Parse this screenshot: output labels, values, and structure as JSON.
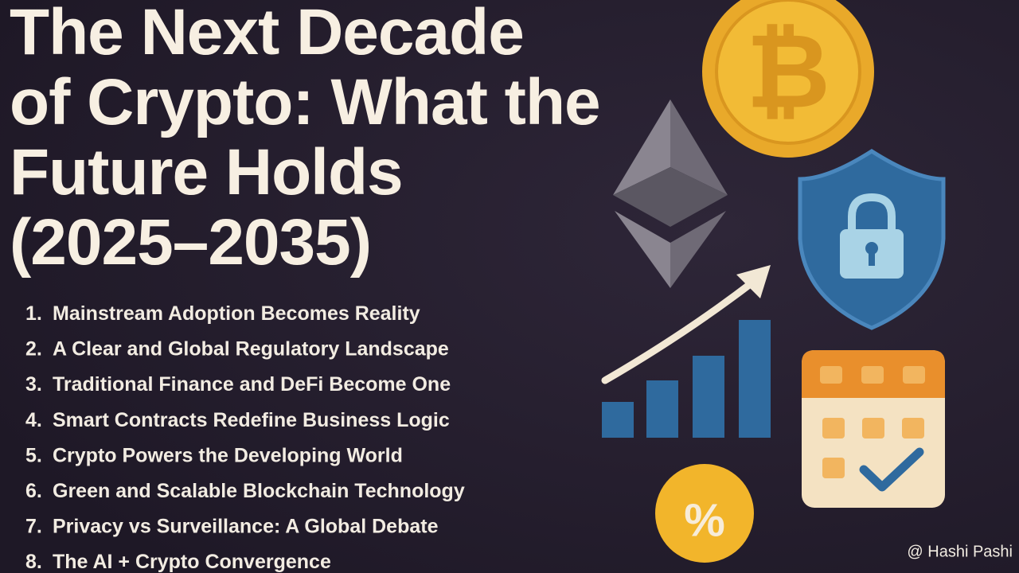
{
  "header": {
    "title_lines": [
      "The Next Decade",
      "of Crypto: What the",
      "Future Holds",
      "(2025–2035)"
    ]
  },
  "list": [
    {
      "number": "1.",
      "text": "Mainstream Adoption Becomes Reality"
    },
    {
      "number": "2.",
      "text": "A Clear and Global Regulatory Landscape"
    },
    {
      "number": "3.",
      "text": "Traditional Finance and DeFi Become One"
    },
    {
      "number": "4.",
      "text": "Smart Contracts Redefine Business Logic"
    },
    {
      "number": "5.",
      "text": "Crypto Powers the Developing World"
    },
    {
      "number": "6.",
      "text": "Green and Scalable Blockchain Technology"
    },
    {
      "number": "7.",
      "text": "Privacy vs Surveillance: A Global Debate"
    },
    {
      "number": "8.",
      "text": "The AI + Crypto Convergence"
    }
  ],
  "icons": {
    "coin_symbol": "₿",
    "percent_symbol": "%"
  },
  "watermark": "@ Hashi Pashi"
}
